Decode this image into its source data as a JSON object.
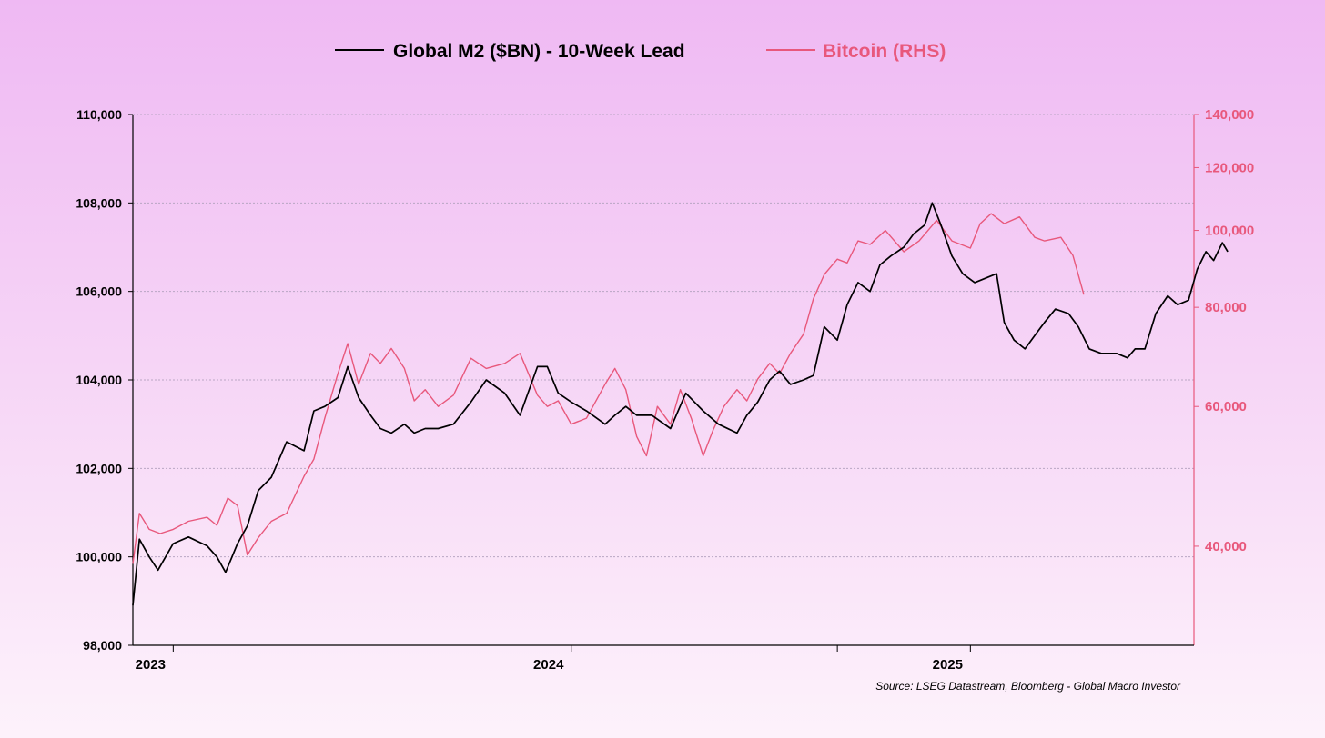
{
  "chart_data": {
    "type": "line",
    "title": "",
    "legend": {
      "placement": "top-center"
    },
    "grid": true,
    "source": "Source: LSEG Datastream, Bloomberg - Global Macro Investor",
    "x_range": [
      "2022-11-25",
      "2025-07-25"
    ],
    "x_ticks": [
      {
        "date": "2023-01-01",
        "label": "2023"
      },
      {
        "date": "2024-01-01",
        "label": "2024"
      },
      {
        "date": "2025-01-01",
        "label": "2025"
      }
    ],
    "x_tick_marks": [
      "2023-01-01",
      "2024-01-01",
      "2024-09-01",
      "2025-01-01"
    ],
    "y_left": {
      "scale": "linear",
      "range": [
        98000,
        110000
      ],
      "ticks": [
        98000,
        100000,
        102000,
        104000,
        106000,
        108000,
        110000
      ],
      "tick_labels": [
        "98,000",
        "100,000",
        "102,000",
        "104,000",
        "106,000",
        "108,000",
        "110,000"
      ]
    },
    "y_right": {
      "scale": "log",
      "range": [
        30000,
        140000
      ],
      "ticks": [
        40000,
        60000,
        80000,
        100000,
        120000,
        140000
      ],
      "tick_labels": [
        "40,000",
        "60,000",
        "80,000",
        "100,000",
        "120,000",
        "140,000"
      ]
    },
    "series": [
      {
        "name": "Global M2 ($BN) - 10-Week Lead",
        "axis": "left",
        "color": "#000000",
        "points": [
          [
            "2022-11-25",
            98900
          ],
          [
            "2022-12-01",
            100400
          ],
          [
            "2022-12-10",
            100000
          ],
          [
            "2022-12-18",
            99700
          ],
          [
            "2023-01-01",
            100300
          ],
          [
            "2023-01-15",
            100450
          ],
          [
            "2023-02-01",
            100250
          ],
          [
            "2023-02-10",
            100000
          ],
          [
            "2023-02-18",
            99650
          ],
          [
            "2023-03-01",
            100300
          ],
          [
            "2023-03-10",
            100700
          ],
          [
            "2023-03-20",
            101500
          ],
          [
            "2023-04-01",
            101800
          ],
          [
            "2023-04-15",
            102600
          ],
          [
            "2023-05-01",
            102400
          ],
          [
            "2023-05-10",
            103300
          ],
          [
            "2023-05-20",
            103400
          ],
          [
            "2023-06-01",
            103600
          ],
          [
            "2023-06-10",
            104300
          ],
          [
            "2023-06-20",
            103600
          ],
          [
            "2023-07-01",
            103200
          ],
          [
            "2023-07-10",
            102900
          ],
          [
            "2023-07-20",
            102800
          ],
          [
            "2023-08-01",
            103000
          ],
          [
            "2023-08-10",
            102800
          ],
          [
            "2023-08-20",
            102900
          ],
          [
            "2023-09-01",
            102900
          ],
          [
            "2023-09-15",
            103000
          ],
          [
            "2023-10-01",
            103500
          ],
          [
            "2023-10-15",
            104000
          ],
          [
            "2023-11-01",
            103700
          ],
          [
            "2023-11-15",
            103200
          ],
          [
            "2023-12-01",
            104300
          ],
          [
            "2023-12-10",
            104300
          ],
          [
            "2023-12-20",
            103700
          ],
          [
            "2024-01-01",
            103500
          ],
          [
            "2024-01-15",
            103300
          ],
          [
            "2024-02-01",
            103000
          ],
          [
            "2024-02-10",
            103200
          ],
          [
            "2024-02-20",
            103400
          ],
          [
            "2024-03-01",
            103200
          ],
          [
            "2024-03-15",
            103200
          ],
          [
            "2024-04-01",
            102900
          ],
          [
            "2024-04-15",
            103700
          ],
          [
            "2024-05-01",
            103300
          ],
          [
            "2024-05-15",
            103000
          ],
          [
            "2024-06-01",
            102800
          ],
          [
            "2024-06-10",
            103200
          ],
          [
            "2024-06-20",
            103500
          ],
          [
            "2024-07-01",
            104000
          ],
          [
            "2024-07-10",
            104200
          ],
          [
            "2024-07-20",
            103900
          ],
          [
            "2024-08-01",
            104000
          ],
          [
            "2024-08-10",
            104100
          ],
          [
            "2024-08-20",
            105200
          ],
          [
            "2024-09-01",
            104900
          ],
          [
            "2024-09-10",
            105700
          ],
          [
            "2024-09-20",
            106200
          ],
          [
            "2024-10-01",
            106000
          ],
          [
            "2024-10-10",
            106600
          ],
          [
            "2024-10-20",
            106800
          ],
          [
            "2024-11-01",
            107000
          ],
          [
            "2024-11-10",
            107300
          ],
          [
            "2024-11-20",
            107500
          ],
          [
            "2024-11-27",
            108000
          ],
          [
            "2024-12-05",
            107500
          ],
          [
            "2024-12-15",
            106800
          ],
          [
            "2024-12-25",
            106400
          ],
          [
            "2025-01-05",
            106200
          ],
          [
            "2025-01-15",
            106300
          ],
          [
            "2025-01-25",
            106400
          ],
          [
            "2025-02-01",
            105300
          ],
          [
            "2025-02-10",
            104900
          ],
          [
            "2025-02-20",
            104700
          ],
          [
            "2025-03-01",
            105000
          ],
          [
            "2025-03-10",
            105300
          ],
          [
            "2025-03-20",
            105600
          ],
          [
            "2025-04-01",
            105500
          ],
          [
            "2025-04-10",
            105200
          ],
          [
            "2025-04-20",
            104700
          ],
          [
            "2025-05-01",
            104600
          ],
          [
            "2025-05-15",
            104600
          ],
          [
            "2025-05-25",
            104500
          ],
          [
            "2025-06-01",
            104700
          ],
          [
            "2025-06-10",
            104700
          ],
          [
            "2025-06-20",
            105500
          ],
          [
            "2025-07-01",
            105900
          ],
          [
            "2025-07-10",
            105700
          ],
          [
            "2025-07-20",
            105800
          ],
          [
            "2025-07-28",
            106500
          ],
          [
            "2025-08-05",
            106900
          ],
          [
            "2025-08-12",
            106700
          ],
          [
            "2025-08-20",
            107100
          ],
          [
            "2025-08-25",
            106900
          ]
        ]
      },
      {
        "name": "Bitcoin (RHS)",
        "axis": "right",
        "color": "#e8587c",
        "points": [
          [
            "2022-11-25",
            38000
          ],
          [
            "2022-12-01",
            44000
          ],
          [
            "2022-12-10",
            42000
          ],
          [
            "2022-12-20",
            41500
          ],
          [
            "2023-01-01",
            42000
          ],
          [
            "2023-01-15",
            43000
          ],
          [
            "2023-02-01",
            43500
          ],
          [
            "2023-02-10",
            42500
          ],
          [
            "2023-02-20",
            46000
          ],
          [
            "2023-03-01",
            45000
          ],
          [
            "2023-03-10",
            39000
          ],
          [
            "2023-03-20",
            41000
          ],
          [
            "2023-04-01",
            43000
          ],
          [
            "2023-04-15",
            44000
          ],
          [
            "2023-05-01",
            49000
          ],
          [
            "2023-05-10",
            51500
          ],
          [
            "2023-05-20",
            58000
          ],
          [
            "2023-06-01",
            66000
          ],
          [
            "2023-06-10",
            72000
          ],
          [
            "2023-06-20",
            64000
          ],
          [
            "2023-07-01",
            70000
          ],
          [
            "2023-07-10",
            68000
          ],
          [
            "2023-07-20",
            71000
          ],
          [
            "2023-08-01",
            67000
          ],
          [
            "2023-08-10",
            61000
          ],
          [
            "2023-08-20",
            63000
          ],
          [
            "2023-09-01",
            60000
          ],
          [
            "2023-09-15",
            62000
          ],
          [
            "2023-10-01",
            69000
          ],
          [
            "2023-10-15",
            67000
          ],
          [
            "2023-11-01",
            68000
          ],
          [
            "2023-11-15",
            70000
          ],
          [
            "2023-12-01",
            62000
          ],
          [
            "2023-12-10",
            60000
          ],
          [
            "2023-12-20",
            61000
          ],
          [
            "2024-01-01",
            57000
          ],
          [
            "2024-01-15",
            58000
          ],
          [
            "2024-02-01",
            64000
          ],
          [
            "2024-02-10",
            67000
          ],
          [
            "2024-02-20",
            63000
          ],
          [
            "2024-03-01",
            55000
          ],
          [
            "2024-03-10",
            52000
          ],
          [
            "2024-03-20",
            60000
          ],
          [
            "2024-04-01",
            57000
          ],
          [
            "2024-04-10",
            63000
          ],
          [
            "2024-04-20",
            58000
          ],
          [
            "2024-05-01",
            52000
          ],
          [
            "2024-05-10",
            56000
          ],
          [
            "2024-05-20",
            60000
          ],
          [
            "2024-06-01",
            63000
          ],
          [
            "2024-06-10",
            61000
          ],
          [
            "2024-06-20",
            65000
          ],
          [
            "2024-07-01",
            68000
          ],
          [
            "2024-07-10",
            66000
          ],
          [
            "2024-07-20",
            70000
          ],
          [
            "2024-08-01",
            74000
          ],
          [
            "2024-08-10",
            82000
          ],
          [
            "2024-08-20",
            88000
          ],
          [
            "2024-09-01",
            92000
          ],
          [
            "2024-09-10",
            91000
          ],
          [
            "2024-09-20",
            97000
          ],
          [
            "2024-10-01",
            96000
          ],
          [
            "2024-10-15",
            100000
          ],
          [
            "2024-11-01",
            94000
          ],
          [
            "2024-11-15",
            97000
          ],
          [
            "2024-12-01",
            103000
          ],
          [
            "2024-12-15",
            97000
          ],
          [
            "2025-01-01",
            95000
          ],
          [
            "2025-01-10",
            102000
          ],
          [
            "2025-01-20",
            105000
          ],
          [
            "2025-02-01",
            102000
          ],
          [
            "2025-02-15",
            104000
          ],
          [
            "2025-03-01",
            98000
          ],
          [
            "2025-03-10",
            97000
          ],
          [
            "2025-03-25",
            98000
          ],
          [
            "2025-04-05",
            93000
          ],
          [
            "2025-04-15",
            83000
          ]
        ]
      }
    ]
  }
}
